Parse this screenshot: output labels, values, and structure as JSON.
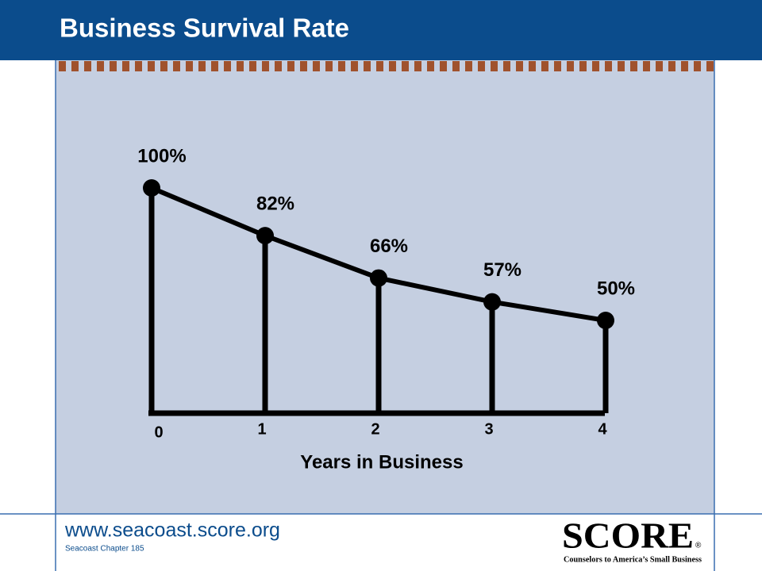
{
  "slide": {
    "title": "Business Survival Rate",
    "url": "www.seacoast.score.org",
    "chapter": "Seacoast Chapter 185",
    "logo": "SCORE",
    "logo_mark": "®",
    "tagline": "Counselors to America’s Small Business"
  },
  "chart_data": {
    "type": "line",
    "x": [
      0,
      1,
      2,
      3,
      4
    ],
    "values": [
      100,
      82,
      66,
      57,
      50
    ],
    "value_labels": [
      "100%",
      "82%",
      "66%",
      "57%",
      "50%"
    ],
    "color": "#000000",
    "xlim": [
      0,
      4
    ],
    "xticks": [
      0,
      1,
      2,
      3,
      4
    ],
    "ylim": [
      15,
      100
    ],
    "xlabel": "Years in Business"
  }
}
